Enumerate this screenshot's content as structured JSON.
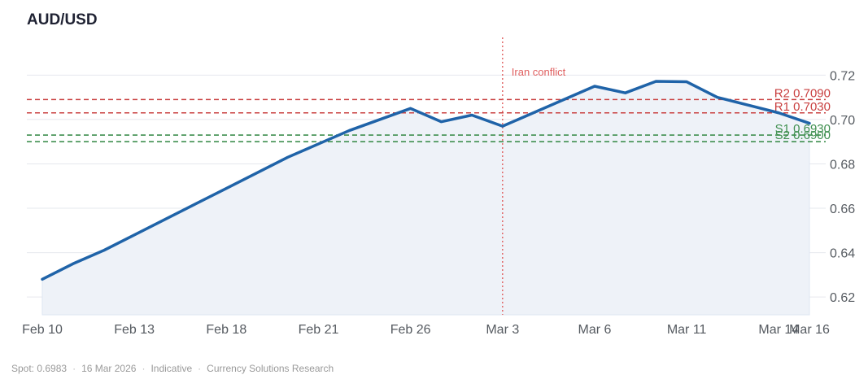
{
  "chart_data": {
    "type": "line",
    "title": "AUD/USD",
    "x": [
      0,
      1,
      2,
      3,
      4,
      5,
      6,
      7,
      8,
      9,
      10,
      11,
      12,
      13,
      14,
      15,
      16,
      17,
      18,
      19,
      20,
      21,
      22,
      23,
      24,
      25
    ],
    "values": [
      0.628,
      0.635,
      0.641,
      0.648,
      0.655,
      0.662,
      0.669,
      0.676,
      0.683,
      0.689,
      0.695,
      0.7,
      0.705,
      0.699,
      0.702,
      0.697,
      0.703,
      0.709,
      0.715,
      0.712,
      0.7172,
      0.717,
      0.71,
      0.7065,
      0.703,
      0.6983
    ],
    "xlim": [
      0,
      25
    ],
    "ylim": [
      0.612,
      0.737
    ],
    "x_ticks": [
      {
        "x": 0,
        "label": "Feb 10"
      },
      {
        "x": 3,
        "label": "Feb 13"
      },
      {
        "x": 6,
        "label": "Feb 18"
      },
      {
        "x": 9,
        "label": "Feb 21"
      },
      {
        "x": 12,
        "label": "Feb 26"
      },
      {
        "x": 15,
        "label": "Mar 3"
      },
      {
        "x": 18,
        "label": "Mar 6"
      },
      {
        "x": 21,
        "label": "Mar 11"
      },
      {
        "x": 24,
        "label": "Mar 14"
      },
      {
        "x": 25,
        "label": "Mar 16"
      }
    ],
    "y_ticks": [
      {
        "y": 0.62,
        "label": "0.62"
      },
      {
        "y": 0.64,
        "label": "0.64"
      },
      {
        "y": 0.66,
        "label": "0.66"
      },
      {
        "y": 0.68,
        "label": "0.68"
      },
      {
        "y": 0.7,
        "label": "0.70"
      },
      {
        "y": 0.72,
        "label": "0.72"
      }
    ],
    "levels": [
      {
        "name": "R2",
        "value": 0.709,
        "label": "R2 0.7090",
        "color": "#c94040"
      },
      {
        "name": "R1",
        "value": 0.703,
        "label": "R1 0.7030",
        "color": "#c94040"
      },
      {
        "name": "S1",
        "value": 0.693,
        "label": "S1 0.6930",
        "color": "#3f8f4f"
      },
      {
        "name": "S2",
        "value": 0.69,
        "label": "S2 0.6900",
        "color": "#3f8f4f"
      }
    ],
    "annotations": [
      {
        "x": 15,
        "label": "Iran conflict",
        "color": "#e06060"
      }
    ],
    "line_color": "#1f63a8",
    "area_color": "#eef2f8",
    "grid": true
  },
  "footer": {
    "spot": "Spot: 0.6983",
    "date": "16 Mar 2026",
    "status": "Indicative",
    "source": "Currency Solutions Research"
  }
}
